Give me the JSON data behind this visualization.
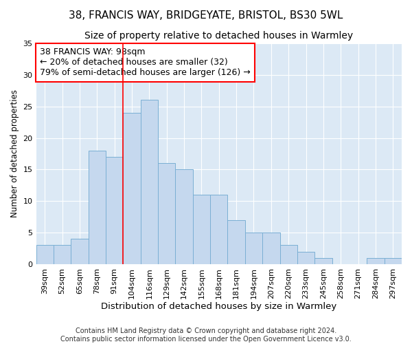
{
  "title": "38, FRANCIS WAY, BRIDGEYATE, BRISTOL, BS30 5WL",
  "subtitle": "Size of property relative to detached houses in Warmley",
  "xlabel": "Distribution of detached houses by size in Warmley",
  "ylabel": "Number of detached properties",
  "categories": [
    "39sqm",
    "52sqm",
    "65sqm",
    "78sqm",
    "91sqm",
    "104sqm",
    "116sqm",
    "129sqm",
    "142sqm",
    "155sqm",
    "168sqm",
    "181sqm",
    "194sqm",
    "207sqm",
    "220sqm",
    "233sqm",
    "245sqm",
    "258sqm",
    "271sqm",
    "284sqm",
    "297sqm"
  ],
  "values": [
    3,
    3,
    4,
    18,
    17,
    24,
    26,
    16,
    15,
    11,
    11,
    7,
    5,
    5,
    3,
    2,
    1,
    0,
    0,
    1,
    1
  ],
  "bar_color": "#c5d8ee",
  "bar_edge_color": "#7aafd4",
  "fig_bg_color": "#ffffff",
  "ax_bg_color": "#dce9f5",
  "grid_color": "#ffffff",
  "annotation_box_text": "38 FRANCIS WAY: 98sqm\n← 20% of detached houses are smaller (32)\n79% of semi-detached houses are larger (126) →",
  "vline_index": 5,
  "ylim": [
    0,
    35
  ],
  "yticks": [
    0,
    5,
    10,
    15,
    20,
    25,
    30,
    35
  ],
  "footer_line1": "Contains HM Land Registry data © Crown copyright and database right 2024.",
  "footer_line2": "Contains public sector information licensed under the Open Government Licence v3.0.",
  "title_fontsize": 11,
  "subtitle_fontsize": 10,
  "xlabel_fontsize": 9.5,
  "ylabel_fontsize": 8.5,
  "tick_fontsize": 8,
  "annotation_fontsize": 9,
  "footer_fontsize": 7
}
